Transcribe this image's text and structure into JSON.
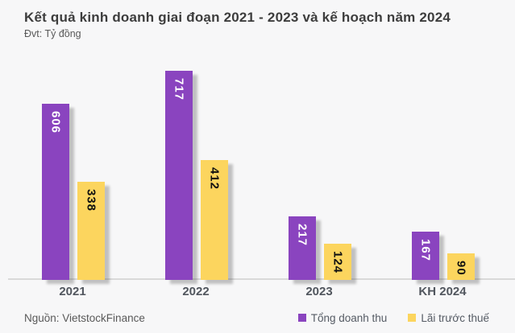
{
  "chart_data": {
    "type": "bar",
    "title": "Kết quả kinh doanh giai đoạn 2021 - 2023 và kế hoạch năm 2024",
    "subtitle": "Đvt: Tỷ đồng",
    "unit": "Tỷ đồng",
    "source": "Nguồn: VietstockFinance",
    "categories": [
      "2021",
      "2022",
      "2023",
      "KH 2024"
    ],
    "series": [
      {
        "name": "Tổng doanh thu",
        "color": "#8a44bf",
        "label_color": "#ffffff",
        "values": [
          606,
          717,
          217,
          167
        ]
      },
      {
        "name": "Lãi trước thuế",
        "color": "#fcd55e",
        "label_color": "#111111",
        "values": [
          338,
          412,
          124,
          90
        ]
      }
    ],
    "ylim": [
      0,
      795
    ],
    "grid": false,
    "legend_position": "bottom-right",
    "bar_label_style": "rotated-90-inside-top",
    "background": "#f7f7f8",
    "axis_line_color": "#d9d9d9"
  }
}
